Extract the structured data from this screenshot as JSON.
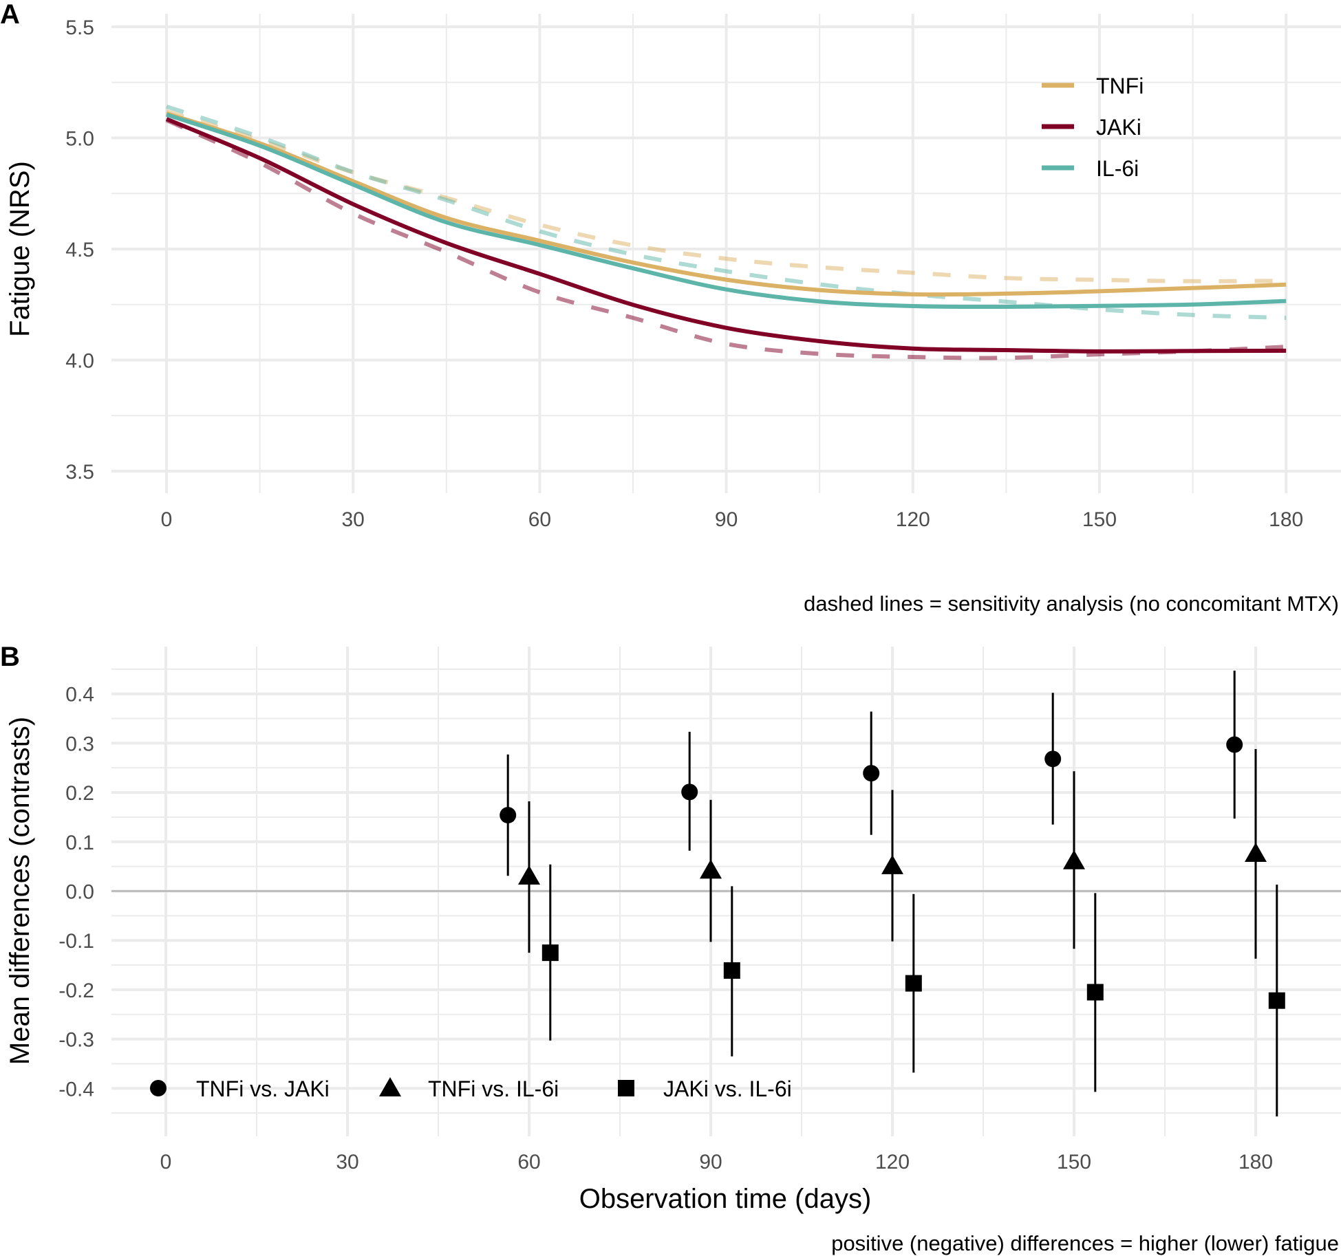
{
  "chart_data": [
    {
      "panel": "A",
      "type": "line",
      "xlabel": "",
      "ylabel": "Fatigue (NRS)",
      "xlim": [
        -9,
        188
      ],
      "ylim": [
        3.4,
        5.56
      ],
      "x_ticks": [
        0,
        30,
        60,
        90,
        120,
        150,
        180
      ],
      "x_tick_labels": [
        "0",
        "30",
        "60",
        "90",
        "120",
        "150",
        "180"
      ],
      "y_ticks": [
        3.5,
        4.0,
        4.5,
        5.0,
        5.5
      ],
      "y_tick_labels": [
        "3.5",
        "4.0",
        "4.5",
        "5.0",
        "5.5"
      ],
      "grid": true,
      "legend_position": "top-right",
      "caption": "dashed lines = sensitivity analysis (no concomitant MTX)",
      "x": [
        0,
        15,
        30,
        45,
        60,
        75,
        90,
        105,
        120,
        135,
        150,
        165,
        180
      ],
      "series": [
        {
          "name": "TNFi",
          "style": "solid",
          "color": "#dbb265",
          "values": [
            5.11,
            4.976,
            4.805,
            4.64,
            4.537,
            4.439,
            4.362,
            4.315,
            4.296,
            4.299,
            4.31,
            4.324,
            4.34
          ]
        },
        {
          "name": "JAKi",
          "style": "solid",
          "color": "#800026",
          "values": [
            5.085,
            4.909,
            4.702,
            4.527,
            4.388,
            4.249,
            4.145,
            4.085,
            4.052,
            4.045,
            4.039,
            4.041,
            4.042
          ]
        },
        {
          "name": "IL-6i",
          "style": "solid",
          "color": "#5db5aa",
          "values": [
            5.105,
            4.965,
            4.79,
            4.62,
            4.518,
            4.413,
            4.318,
            4.264,
            4.243,
            4.24,
            4.244,
            4.25,
            4.266
          ]
        },
        {
          "name": "TNFi (sensitivity)",
          "style": "dashed",
          "color": "#dbb265",
          "values": [
            5.12,
            4.99,
            4.845,
            4.73,
            4.609,
            4.516,
            4.456,
            4.418,
            4.393,
            4.369,
            4.361,
            4.355,
            4.357
          ]
        },
        {
          "name": "JAKi (sensitivity)",
          "style": "dashed",
          "color": "#800026",
          "values": [
            5.08,
            4.888,
            4.66,
            4.486,
            4.305,
            4.19,
            4.073,
            4.028,
            4.014,
            4.01,
            4.026,
            4.04,
            4.06
          ]
        },
        {
          "name": "IL-6i (sensitivity)",
          "style": "dashed",
          "color": "#5db5aa",
          "values": [
            5.141,
            5.004,
            4.846,
            4.72,
            4.58,
            4.475,
            4.4,
            4.341,
            4.296,
            4.263,
            4.228,
            4.203,
            4.19
          ]
        }
      ],
      "legend": [
        {
          "label": "TNFi",
          "color": "#dbb265"
        },
        {
          "label": "JAKi",
          "color": "#800026"
        },
        {
          "label": "IL-6i",
          "color": "#5db5aa"
        }
      ]
    },
    {
      "panel": "B",
      "type": "scatter",
      "xlabel": "Observation time (days)",
      "ylabel": "Mean differences (contrasts)",
      "xlim": [
        -9,
        194
      ],
      "ylim": [
        -0.49,
        0.49
      ],
      "x_ticks": [
        0,
        30,
        60,
        90,
        120,
        150,
        180
      ],
      "x_tick_labels": [
        "0",
        "30",
        "60",
        "90",
        "120",
        "150",
        "180"
      ],
      "y_ticks": [
        -0.4,
        -0.3,
        -0.2,
        -0.1,
        0.0,
        0.1,
        0.2,
        0.3,
        0.4
      ],
      "y_tick_labels": [
        "-0.4",
        "-0.3",
        "-0.2",
        "-0.1",
        "0.0",
        "0.1",
        "0.2",
        "0.3",
        "0.4"
      ],
      "grid": true,
      "reference_line": 0,
      "legend_position": "bottom-left",
      "caption": "positive (negative) differences = higher (lower) fatigue",
      "x": [
        60,
        90,
        120,
        150,
        180
      ],
      "series": [
        {
          "name": "TNFi vs. JAKi",
          "marker": "circle",
          "dodge": -3.5,
          "values": [
            0.154,
            0.201,
            0.239,
            0.268,
            0.297
          ],
          "lower": [
            0.031,
            0.082,
            0.114,
            0.135,
            0.147
          ],
          "upper": [
            0.277,
            0.323,
            0.364,
            0.402,
            0.447
          ]
        },
        {
          "name": "TNFi vs. IL-6i",
          "marker": "triangle",
          "dodge": 0,
          "values": [
            0.03,
            0.042,
            0.051,
            0.061,
            0.076
          ],
          "lower": [
            -0.125,
            -0.103,
            -0.102,
            -0.117,
            -0.137
          ],
          "upper": [
            0.182,
            0.185,
            0.205,
            0.243,
            0.288
          ]
        },
        {
          "name": "JAKi vs. IL-6i",
          "marker": "square",
          "dodge": 3.5,
          "values": [
            -0.125,
            -0.161,
            -0.187,
            -0.205,
            -0.222
          ],
          "lower": [
            -0.303,
            -0.335,
            -0.368,
            -0.407,
            -0.457
          ],
          "upper": [
            0.054,
            0.01,
            -0.006,
            -0.004,
            0.013
          ]
        }
      ]
    }
  ],
  "panel_labels": [
    "A",
    "B"
  ]
}
